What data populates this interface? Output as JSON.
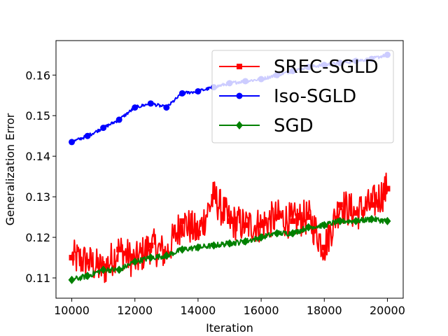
{
  "chart_data": {
    "type": "line",
    "title": "",
    "xlabel": "Iteration",
    "ylabel": "Generalization Error",
    "xlim": [
      9500,
      20500
    ],
    "ylim": [
      0.105,
      0.1685
    ],
    "xticks": [
      10000,
      12000,
      14000,
      16000,
      18000,
      20000
    ],
    "xtick_labels": [
      "10000",
      "12000",
      "14000",
      "16000",
      "18000",
      "20000"
    ],
    "yticks": [
      0.11,
      0.12,
      0.13,
      0.14,
      0.15,
      0.16
    ],
    "ytick_labels": [
      "0.11",
      "0.12",
      "0.13",
      "0.14",
      "0.15",
      "0.16"
    ],
    "legend_position": "top-right",
    "series": [
      {
        "name": "SREC-SGLD",
        "color": "#ff0000",
        "marker": "square",
        "x": [
          10000,
          10500,
          11000,
          11500,
          12000,
          12500,
          13000,
          13500,
          14000,
          14500,
          15000,
          15500,
          16000,
          16500,
          17000,
          17500,
          18000,
          18500,
          19000,
          19500,
          20000
        ],
        "values": [
          0.115,
          0.114,
          0.112,
          0.117,
          0.114,
          0.118,
          0.116,
          0.124,
          0.121,
          0.13,
          0.124,
          0.123,
          0.123,
          0.125,
          0.124,
          0.125,
          0.1175,
          0.128,
          0.126,
          0.128,
          0.132
        ]
      },
      {
        "name": "Iso-SGLD",
        "color": "#0000ff",
        "marker": "circle",
        "x": [
          10000,
          10500,
          11000,
          11500,
          12000,
          12500,
          13000,
          13500,
          14000,
          14500,
          15000,
          15500,
          16000,
          16500,
          17000,
          17500,
          18000,
          18500,
          19000,
          19500,
          20000
        ],
        "values": [
          0.1435,
          0.145,
          0.147,
          0.149,
          0.152,
          0.153,
          0.152,
          0.1555,
          0.156,
          0.157,
          0.158,
          0.1585,
          0.159,
          0.16,
          0.161,
          0.162,
          0.1625,
          0.163,
          0.1635,
          0.164,
          0.165
        ]
      },
      {
        "name": "SGD",
        "color": "#008000",
        "marker": "diamond",
        "x": [
          10000,
          10500,
          11000,
          11500,
          12000,
          12500,
          13000,
          13500,
          14000,
          14500,
          15000,
          15500,
          16000,
          16500,
          17000,
          17500,
          18000,
          18500,
          19000,
          19500,
          20000
        ],
        "values": [
          0.1095,
          0.1105,
          0.112,
          0.112,
          0.114,
          0.115,
          0.1155,
          0.117,
          0.1175,
          0.118,
          0.1185,
          0.119,
          0.12,
          0.121,
          0.121,
          0.1225,
          0.123,
          0.124,
          0.124,
          0.1245,
          0.124
        ]
      }
    ]
  }
}
